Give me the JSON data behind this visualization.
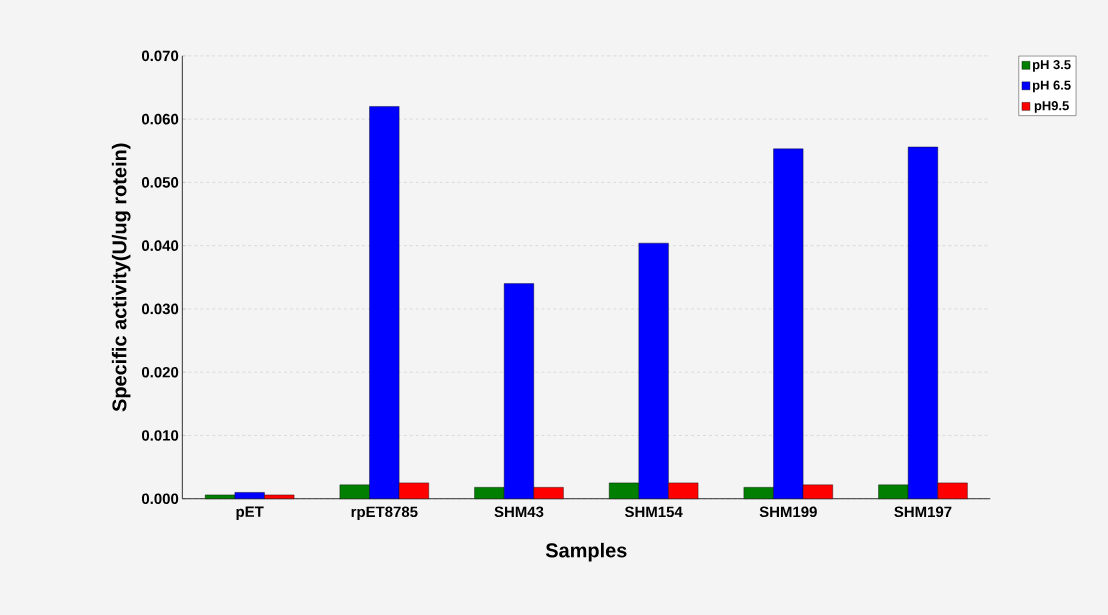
{
  "chart_data": {
    "type": "bar",
    "xlabel": "Samples",
    "ylabel": "Specific activity(U/ug rotein)",
    "categories": [
      "pET",
      "rpET8785",
      "SHM43",
      "SHM154",
      "SHM199",
      "SHM197"
    ],
    "series": [
      {
        "name": "pH 3.5",
        "color": "#007f00",
        "values": [
          0.0006,
          0.0022,
          0.0018,
          0.0025,
          0.0018,
          0.0022
        ]
      },
      {
        "name": "pH 6.5",
        "color": "#0000ff",
        "values": [
          0.001,
          0.062,
          0.034,
          0.0404,
          0.0553,
          0.0556
        ]
      },
      {
        "name": "pH9.5",
        "color": "#ff0000",
        "values": [
          0.0006,
          0.0025,
          0.0018,
          0.0025,
          0.0022,
          0.0025
        ]
      }
    ],
    "ylim": [
      0,
      0.07
    ],
    "yticks": [
      {
        "value": 0,
        "label": "0.000"
      },
      {
        "value": 0.01,
        "label": "0.010"
      },
      {
        "value": 0.02,
        "label": "0.020"
      },
      {
        "value": 0.03,
        "label": "0.030"
      },
      {
        "value": 0.04,
        "label": "0.040"
      },
      {
        "value": 0.05,
        "label": "0.050"
      },
      {
        "value": 0.06,
        "label": "0.060"
      },
      {
        "value": 0.07,
        "label": "0.070"
      }
    ],
    "grid": "y",
    "legend": "top right"
  }
}
